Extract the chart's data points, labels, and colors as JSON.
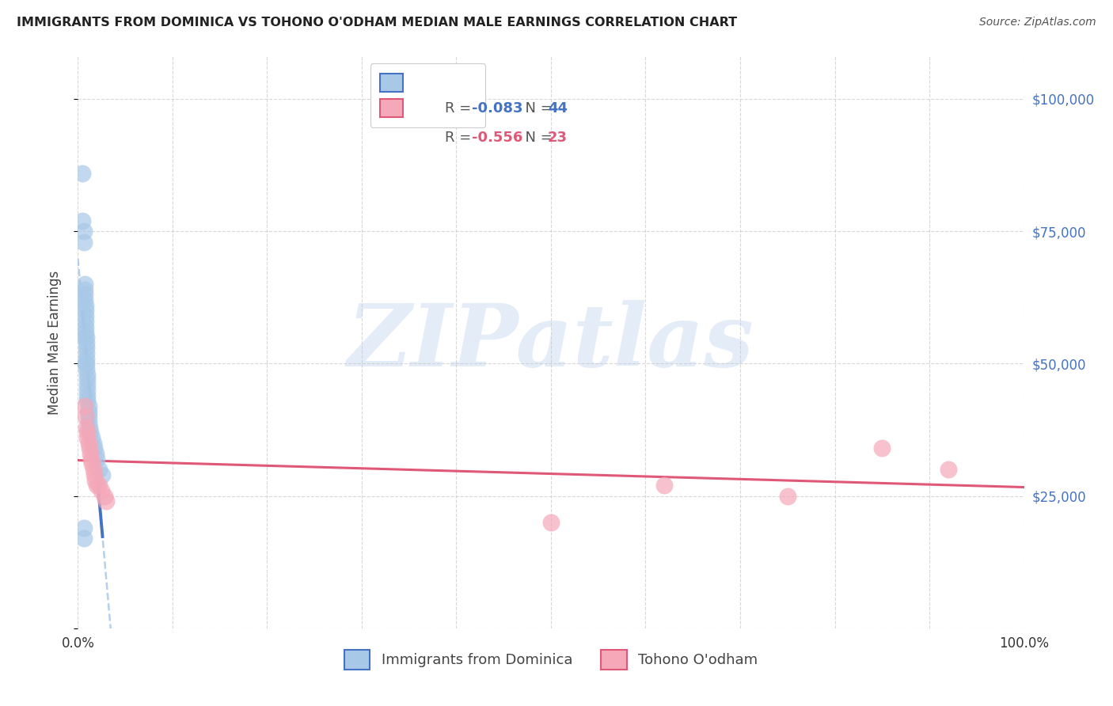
{
  "title": "IMMIGRANTS FROM DOMINICA VS TOHONO O'ODHAM MEDIAN MALE EARNINGS CORRELATION CHART",
  "source": "Source: ZipAtlas.com",
  "ylabel": "Median Male Earnings",
  "y_ticks": [
    0,
    25000,
    50000,
    75000,
    100000
  ],
  "y_tick_labels_right": [
    "",
    "$25,000",
    "$50,000",
    "$75,000",
    "$100,000"
  ],
  "xlim": [
    0.0,
    1.0
  ],
  "ylim": [
    0,
    108000
  ],
  "legend1_r": "-0.083",
  "legend1_n": "44",
  "legend2_r": "-0.556",
  "legend2_n": "23",
  "blue_scatter_color": "#a8c8e8",
  "blue_line_color": "#4472c4",
  "blue_dash_color": "#a8c8e8",
  "pink_scatter_color": "#f4a8b8",
  "pink_line_color": "#e05878",
  "dominica_x": [
    0.005,
    0.005,
    0.006,
    0.006,
    0.007,
    0.007,
    0.007,
    0.007,
    0.008,
    0.008,
    0.008,
    0.008,
    0.008,
    0.008,
    0.009,
    0.009,
    0.009,
    0.009,
    0.009,
    0.009,
    0.009,
    0.01,
    0.01,
    0.01,
    0.01,
    0.01,
    0.01,
    0.011,
    0.011,
    0.011,
    0.011,
    0.012,
    0.013,
    0.015,
    0.016,
    0.017,
    0.019,
    0.02,
    0.022,
    0.026,
    0.006,
    0.006,
    0.007,
    0.008
  ],
  "dominica_y": [
    86000,
    77000,
    75000,
    73000,
    65000,
    64000,
    63000,
    62000,
    61000,
    60000,
    59000,
    58000,
    57000,
    56000,
    55000,
    54000,
    53000,
    52000,
    51000,
    50000,
    49000,
    48000,
    47000,
    46000,
    45000,
    44000,
    43000,
    42000,
    41000,
    40000,
    39000,
    38000,
    37000,
    36000,
    35000,
    34000,
    33000,
    32000,
    30000,
    29000,
    19000,
    17000,
    55000,
    50000
  ],
  "tohono_x": [
    0.007,
    0.008,
    0.009,
    0.01,
    0.01,
    0.011,
    0.012,
    0.013,
    0.014,
    0.015,
    0.016,
    0.017,
    0.018,
    0.02,
    0.022,
    0.025,
    0.028,
    0.03,
    0.5,
    0.62,
    0.75,
    0.85,
    0.92
  ],
  "tohono_y": [
    42000,
    40000,
    38000,
    37000,
    36000,
    35000,
    34000,
    33000,
    32000,
    31000,
    30000,
    29000,
    28000,
    27000,
    27000,
    26000,
    25000,
    24000,
    20000,
    27000,
    25000,
    34000,
    30000
  ],
  "watermark_text": "ZIPatlas",
  "bg_color": "#ffffff",
  "grid_color": "#c8c8c8"
}
